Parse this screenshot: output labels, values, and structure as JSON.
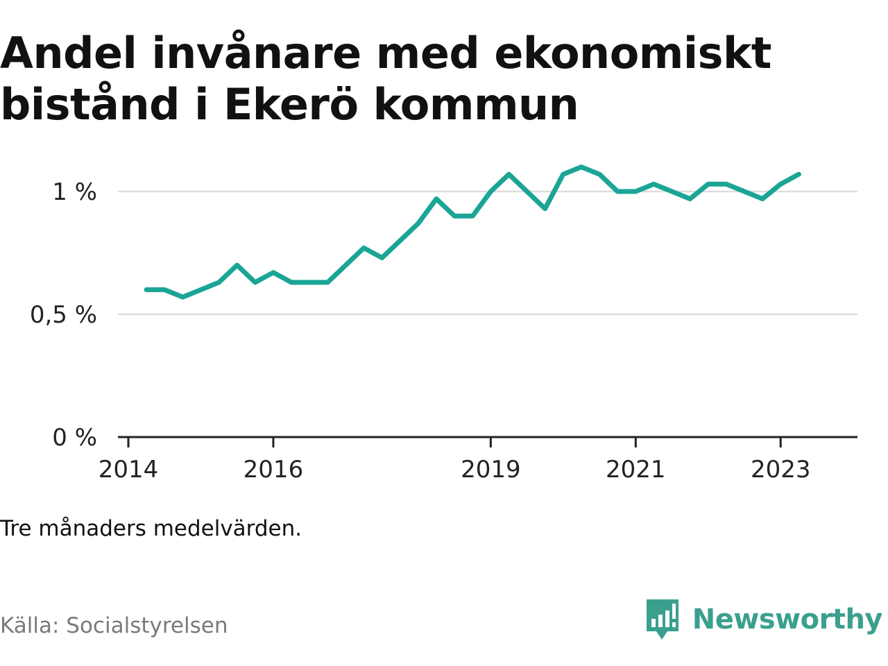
{
  "title": "Andel invånare med ekonomiskt bistånd i Ekerö kommun",
  "note": "Tre månaders medelvärden.",
  "source": "Källa: Socialstyrelsen",
  "brand": {
    "name": "Newsworthy",
    "icon": "newsworthy-logo-icon",
    "color": "#3aa08e"
  },
  "chart_data": {
    "type": "line",
    "title": "Andel invånare med ekonomiskt bistånd i Ekerö kommun",
    "xlabel": "",
    "ylabel": "",
    "color": "#1aa595",
    "grid": true,
    "x_ticks": [
      "2014",
      "2016",
      "2019",
      "2021",
      "2023"
    ],
    "y_ticks": [
      "0 %",
      "0,5 %",
      "1 %"
    ],
    "y_tick_values": [
      0,
      0.5,
      1.0
    ],
    "ylim": [
      0,
      1.13
    ],
    "xlim": [
      "2014-01",
      "2023-12"
    ],
    "series": [
      {
        "x": [
          "2014-04",
          "2014-07",
          "2014-10",
          "2015-01",
          "2015-04",
          "2015-07",
          "2015-10",
          "2016-01",
          "2016-04",
          "2016-07",
          "2016-10",
          "2017-01",
          "2017-04",
          "2017-07",
          "2017-10",
          "2018-01",
          "2018-04",
          "2018-07",
          "2018-10",
          "2019-01",
          "2019-04",
          "2019-07",
          "2019-10",
          "2020-01",
          "2020-04",
          "2020-07",
          "2020-10",
          "2021-01",
          "2021-04",
          "2021-07",
          "2021-10",
          "2022-01",
          "2022-04",
          "2022-07",
          "2022-10",
          "2023-01",
          "2023-04"
        ],
        "values": [
          0.6,
          0.6,
          0.57,
          0.6,
          0.63,
          0.7,
          0.63,
          0.67,
          0.63,
          0.63,
          0.63,
          0.7,
          0.77,
          0.73,
          0.8,
          0.87,
          0.97,
          0.9,
          0.9,
          1.0,
          1.07,
          1.0,
          0.93,
          1.07,
          1.1,
          1.07,
          1.0,
          1.0,
          1.03,
          1.0,
          0.97,
          1.03,
          1.03,
          1.0,
          0.97,
          1.03,
          1.07
        ]
      }
    ]
  }
}
